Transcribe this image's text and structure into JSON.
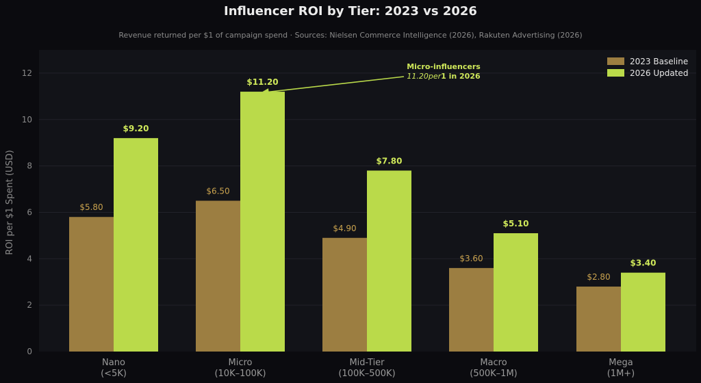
{
  "colors": {
    "background": "#0b0b0f",
    "plot_background": "#121318",
    "grid": "#22232a",
    "baseline_bar": "#9c7e41",
    "updated_bar": "#bada4a",
    "baseline_label": "#c9a24e",
    "updated_label": "#cfe85a",
    "title": "#ececec",
    "subtitle": "#8a8a8a",
    "tick": "#8a8a8a",
    "axis_label": "#8a8a8a",
    "category_label": "#9a9a9a",
    "legend_text": "#e6e6e6"
  },
  "chart_data": {
    "type": "bar",
    "title": "Influencer ROI by Tier: 2023 vs 2026",
    "subtitle": "Revenue returned per $1 of campaign spend · Sources: Nielsen Commerce Intelligence (2026), Rakuten Advertising (2026)",
    "xlabel": "",
    "ylabel": "ROI per $1 Spent (USD)",
    "ylim": [
      0,
      13
    ],
    "yticks": [
      0,
      2,
      4,
      6,
      8,
      10,
      12
    ],
    "grid": true,
    "legend_position": "top-right",
    "categories": [
      [
        "Nano",
        "(<5K)"
      ],
      [
        "Micro",
        "(10K–100K)"
      ],
      [
        "Mid-Tier",
        "(100K–500K)"
      ],
      [
        "Macro",
        "(500K–1M)"
      ],
      [
        "Mega",
        "(1M+)"
      ]
    ],
    "series": [
      {
        "name": "2023 Baseline",
        "values": [
          5.8,
          6.5,
          4.9,
          3.6,
          2.8
        ],
        "labels": [
          "$5.80",
          "$6.50",
          "$4.90",
          "$3.60",
          "$2.80"
        ]
      },
      {
        "name": "2026 Updated",
        "values": [
          9.2,
          11.2,
          7.8,
          5.1,
          3.4
        ],
        "labels": [
          "$9.20",
          "$11.20",
          "$7.80",
          "$5.10",
          "$3.40"
        ]
      }
    ],
    "annotation": {
      "line1": "Micro-influencers",
      "line2_italic": "11.20per",
      "line2_bold": "1 in 2026",
      "target_series": 1,
      "target_category": 1
    }
  }
}
